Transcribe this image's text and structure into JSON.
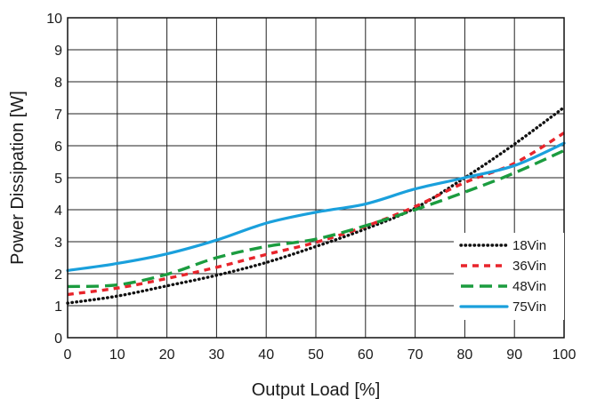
{
  "chart_data": {
    "type": "line",
    "title": "",
    "xlabel": "Output Load [%]",
    "ylabel": "Power Dissipation [W]",
    "xlim": [
      0,
      100
    ],
    "ylim": [
      0,
      10
    ],
    "x_ticks": [
      0,
      10,
      20,
      30,
      40,
      50,
      60,
      70,
      80,
      90,
      100
    ],
    "y_ticks": [
      0,
      1,
      2,
      3,
      4,
      5,
      6,
      7,
      8,
      9,
      10
    ],
    "grid": true,
    "legend_position": "bottom-right",
    "series": [
      {
        "name": "18Vin",
        "color": "#111111",
        "style": "dotted",
        "x": [
          0,
          10,
          20,
          30,
          40,
          50,
          60,
          70,
          80,
          90,
          100
        ],
        "y": [
          1.08,
          1.3,
          1.62,
          1.95,
          2.35,
          2.85,
          3.4,
          4.05,
          5.0,
          6.05,
          7.2
        ]
      },
      {
        "name": "36Vin",
        "color": "#e8242b",
        "style": "short-dash",
        "x": [
          0,
          10,
          20,
          30,
          40,
          50,
          60,
          70,
          80,
          90,
          100
        ],
        "y": [
          1.35,
          1.55,
          1.85,
          2.2,
          2.6,
          2.98,
          3.48,
          4.1,
          4.85,
          5.45,
          6.4
        ]
      },
      {
        "name": "48Vin",
        "color": "#1b9c3f",
        "style": "long-dash",
        "x": [
          0,
          10,
          20,
          30,
          40,
          50,
          60,
          70,
          80,
          90,
          100
        ],
        "y": [
          1.6,
          1.65,
          1.98,
          2.5,
          2.85,
          3.08,
          3.5,
          4.0,
          4.55,
          5.15,
          5.85
        ]
      },
      {
        "name": "75Vin",
        "color": "#1aa0dc",
        "style": "solid",
        "x": [
          0,
          10,
          20,
          30,
          40,
          50,
          60,
          70,
          80,
          90,
          100
        ],
        "y": [
          2.1,
          2.32,
          2.62,
          3.05,
          3.58,
          3.92,
          4.18,
          4.65,
          5.0,
          5.38,
          6.08
        ]
      }
    ]
  }
}
